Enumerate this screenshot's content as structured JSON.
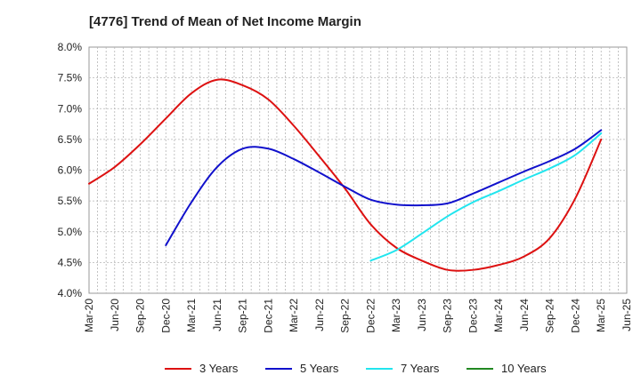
{
  "chart_data": {
    "type": "line",
    "title": "[4776]  Trend of Mean of Net Income Margin",
    "xlabel": "",
    "ylabel": "",
    "x_ticks": [
      "Mar-20",
      "Jun-20",
      "Sep-20",
      "Dec-20",
      "Mar-21",
      "Jun-21",
      "Sep-21",
      "Dec-21",
      "Mar-22",
      "Jun-22",
      "Sep-22",
      "Dec-22",
      "Mar-23",
      "Jun-23",
      "Sep-23",
      "Dec-23",
      "Mar-24",
      "Jun-24",
      "Sep-24",
      "Dec-24",
      "Mar-25",
      "Jun-25"
    ],
    "y_ticks": [
      "4.0%",
      "4.5%",
      "5.0%",
      "5.5%",
      "6.0%",
      "6.5%",
      "7.0%",
      "7.5%",
      "8.0%"
    ],
    "ylim": [
      4.0,
      8.0
    ],
    "grid": true,
    "legend_position": "bottom",
    "series": [
      {
        "name": "3 Years",
        "color": "#dd1111",
        "x": [
          "Mar-20",
          "Jun-20",
          "Sep-20",
          "Dec-20",
          "Mar-21",
          "Jun-21",
          "Sep-21",
          "Dec-21",
          "Mar-22",
          "Jun-22",
          "Sep-22",
          "Dec-22",
          "Mar-23",
          "Jun-23",
          "Sep-23",
          "Dec-23",
          "Mar-24",
          "Jun-24",
          "Sep-24",
          "Dec-24",
          "Mar-25"
        ],
        "values": [
          5.78,
          6.05,
          6.42,
          6.84,
          7.25,
          7.47,
          7.38,
          7.15,
          6.72,
          6.22,
          5.7,
          5.12,
          4.74,
          4.53,
          4.38,
          4.38,
          4.46,
          4.6,
          4.9,
          5.55,
          6.5
        ]
      },
      {
        "name": "5 Years",
        "color": "#1111cc",
        "x": [
          "Dec-20",
          "Mar-21",
          "Jun-21",
          "Sep-21",
          "Dec-21",
          "Mar-22",
          "Jun-22",
          "Sep-22",
          "Dec-22",
          "Mar-23",
          "Jun-23",
          "Sep-23",
          "Dec-23",
          "Mar-24",
          "Jun-24",
          "Sep-24",
          "Dec-24",
          "Mar-25"
        ],
        "values": [
          4.78,
          5.48,
          6.05,
          6.35,
          6.35,
          6.18,
          5.96,
          5.73,
          5.52,
          5.44,
          5.43,
          5.46,
          5.62,
          5.8,
          5.98,
          6.15,
          6.35,
          6.65
        ]
      },
      {
        "name": "7 Years",
        "color": "#22e5ee",
        "x": [
          "Dec-22",
          "Mar-23",
          "Jun-23",
          "Sep-23",
          "Dec-23",
          "Mar-24",
          "Jun-24",
          "Sep-24",
          "Dec-24",
          "Mar-25"
        ],
        "values": [
          4.53,
          4.7,
          4.97,
          5.25,
          5.48,
          5.66,
          5.85,
          6.03,
          6.25,
          6.6
        ]
      },
      {
        "name": "10 Years",
        "color": "#228822",
        "x": [],
        "values": []
      }
    ]
  }
}
